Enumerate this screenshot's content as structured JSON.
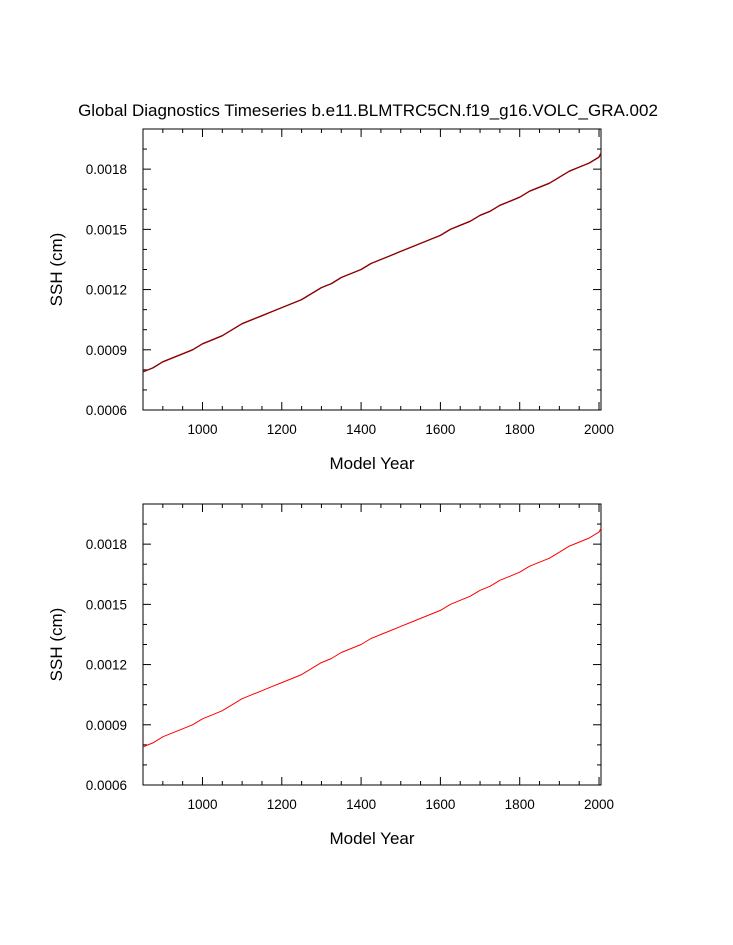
{
  "figure_title": "Global Diagnostics Timeseries b.e11.BLMTRC5CN.f19_g16.VOLC_GRA.002",
  "colors": {
    "top_series": "#8b0000",
    "bottom_series": "#ff0000",
    "axes": "#000000"
  },
  "chart_data": [
    {
      "type": "line",
      "title": "Global Diagnostics Timeseries b.e11.BLMTRC5CN.f19_g16.VOLC_GRA.002",
      "xlabel": "Model Year",
      "ylabel": "SSH (cm)",
      "xlim": [
        850,
        2005
      ],
      "ylim": [
        0.0006,
        0.002
      ],
      "x_ticks": [
        1000,
        1200,
        1400,
        1600,
        1800,
        2000
      ],
      "x_tick_labels": [
        "1000",
        "1200",
        "1400",
        "1600",
        "1800",
        "2000"
      ],
      "y_ticks": [
        0.0006,
        0.0009,
        0.0012,
        0.0015,
        0.0018
      ],
      "y_tick_labels": [
        "0.0006",
        "0.0009",
        "0.0012",
        "0.0015",
        "0.0018"
      ],
      "grid": false,
      "series": [
        {
          "name": "SSH",
          "color": "#8b0000",
          "x": [
            850,
            875,
            900,
            925,
            950,
            975,
            1000,
            1025,
            1050,
            1075,
            1100,
            1125,
            1150,
            1175,
            1200,
            1225,
            1250,
            1275,
            1300,
            1325,
            1350,
            1375,
            1400,
            1425,
            1450,
            1475,
            1500,
            1525,
            1550,
            1575,
            1600,
            1625,
            1650,
            1675,
            1700,
            1725,
            1750,
            1775,
            1800,
            1825,
            1850,
            1875,
            1900,
            1925,
            1950,
            1975,
            2000,
            2005
          ],
          "values": [
            0.00079,
            0.00081,
            0.00084,
            0.00086,
            0.00088,
            0.0009,
            0.00093,
            0.00095,
            0.00097,
            0.001,
            0.00103,
            0.00105,
            0.00107,
            0.00109,
            0.00111,
            0.00113,
            0.00115,
            0.00118,
            0.00121,
            0.00123,
            0.00126,
            0.00128,
            0.0013,
            0.00133,
            0.00135,
            0.00137,
            0.00139,
            0.00141,
            0.00143,
            0.00145,
            0.00147,
            0.0015,
            0.00152,
            0.00154,
            0.00157,
            0.00159,
            0.00162,
            0.00164,
            0.00166,
            0.00169,
            0.00171,
            0.00173,
            0.00176,
            0.00179,
            0.00181,
            0.00183,
            0.00186,
            0.00188
          ]
        }
      ]
    },
    {
      "type": "line",
      "title": "",
      "xlabel": "Model Year",
      "ylabel": "SSH (cm)",
      "xlim": [
        850,
        2005
      ],
      "ylim": [
        0.0006,
        0.002
      ],
      "x_ticks": [
        1000,
        1200,
        1400,
        1600,
        1800,
        2000
      ],
      "x_tick_labels": [
        "1000",
        "1200",
        "1400",
        "1600",
        "1800",
        "2000"
      ],
      "y_ticks": [
        0.0006,
        0.0009,
        0.0012,
        0.0015,
        0.0018
      ],
      "y_tick_labels": [
        "0.0006",
        "0.0009",
        "0.0012",
        "0.0015",
        "0.0018"
      ],
      "grid": false,
      "series": [
        {
          "name": "SSH",
          "color": "#ff0000",
          "x": [
            850,
            875,
            900,
            925,
            950,
            975,
            1000,
            1025,
            1050,
            1075,
            1100,
            1125,
            1150,
            1175,
            1200,
            1225,
            1250,
            1275,
            1300,
            1325,
            1350,
            1375,
            1400,
            1425,
            1450,
            1475,
            1500,
            1525,
            1550,
            1575,
            1600,
            1625,
            1650,
            1675,
            1700,
            1725,
            1750,
            1775,
            1800,
            1825,
            1850,
            1875,
            1900,
            1925,
            1950,
            1975,
            2000,
            2005
          ],
          "values": [
            0.00079,
            0.00081,
            0.00084,
            0.00086,
            0.00088,
            0.0009,
            0.00093,
            0.00095,
            0.00097,
            0.001,
            0.00103,
            0.00105,
            0.00107,
            0.00109,
            0.00111,
            0.00113,
            0.00115,
            0.00118,
            0.00121,
            0.00123,
            0.00126,
            0.00128,
            0.0013,
            0.00133,
            0.00135,
            0.00137,
            0.00139,
            0.00141,
            0.00143,
            0.00145,
            0.00147,
            0.0015,
            0.00152,
            0.00154,
            0.00157,
            0.00159,
            0.00162,
            0.00164,
            0.00166,
            0.00169,
            0.00171,
            0.00173,
            0.00176,
            0.00179,
            0.00181,
            0.00183,
            0.00186,
            0.00188
          ]
        }
      ]
    }
  ]
}
